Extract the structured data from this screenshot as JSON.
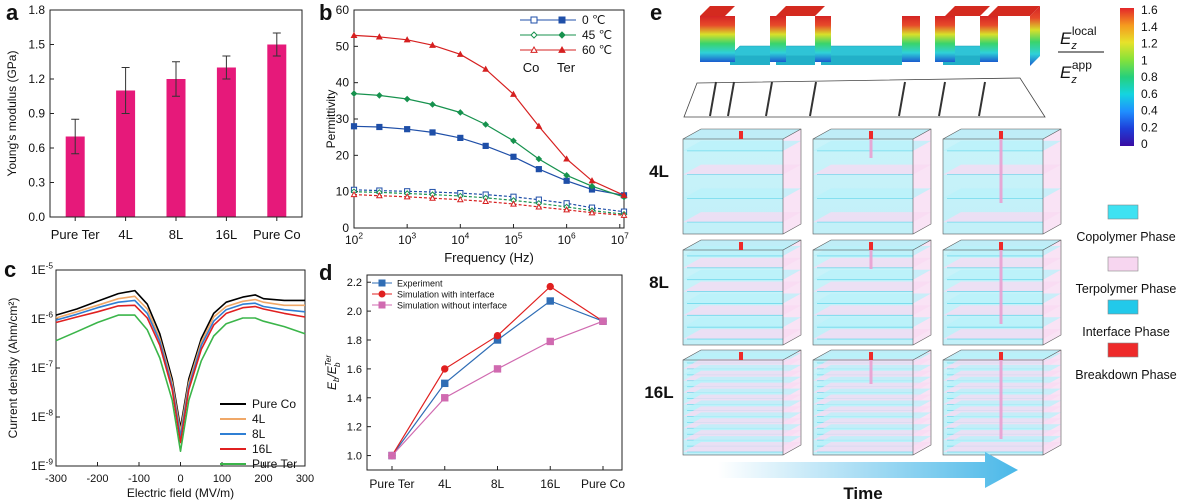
{
  "panels": {
    "a": {
      "letter": "a",
      "chart_data": {
        "type": "bar",
        "ylabel": "Young's modulus (GPa)",
        "categories": [
          "Pure Ter",
          "4L",
          "8L",
          "16L",
          "Pure Co"
        ],
        "values": [
          0.7,
          1.1,
          1.2,
          1.3,
          1.5
        ],
        "errors": [
          0.15,
          0.2,
          0.15,
          0.1,
          0.1
        ],
        "ylim": [
          0,
          1.8
        ],
        "yticks": [
          "0.0",
          "0.3",
          "0.6",
          "0.9",
          "1.2",
          "1.5",
          "1.8"
        ],
        "color": "#e6197a"
      }
    },
    "b": {
      "letter": "b",
      "chart_data": {
        "type": "line",
        "xscale": "log",
        "xlabel": "Frequency (Hz)",
        "ylabel": "Permittivity",
        "xlim": [
          100,
          12000000
        ],
        "ylim": [
          0,
          60
        ],
        "yticks": [
          "0",
          "10",
          "20",
          "30",
          "40",
          "50",
          "60"
        ],
        "xtick_exponents": [
          "2",
          "3",
          "4",
          "5",
          "6",
          "7"
        ],
        "legend_temps": [
          "0 ℃",
          "45 ℃",
          "60 ℃"
        ],
        "legend_co": "Co",
        "legend_ter": "Ter",
        "series": [
          {
            "name": "0 ℃",
            "group": "Ter",
            "color": "#1f4fa8",
            "marker": "square",
            "x": [
              100,
              300,
              1000,
              3000,
              10000,
              30000,
              100000,
              300000,
              1000000,
              3000000,
              12000000
            ],
            "values": [
              28,
              27.8,
              27.2,
              26.3,
              24.8,
              22.6,
              19.6,
              16.2,
              13,
              10.6,
              9
            ]
          },
          {
            "name": "45 ℃",
            "group": "Ter",
            "color": "#17924e",
            "marker": "diamond",
            "x": [
              100,
              300,
              1000,
              3000,
              10000,
              30000,
              100000,
              300000,
              1000000,
              3000000,
              12000000
            ],
            "values": [
              37,
              36.5,
              35.5,
              34,
              31.8,
              28.5,
              24,
              19,
              14.5,
              11.5,
              8.5
            ]
          },
          {
            "name": "60 ℃",
            "group": "Ter",
            "color": "#d62020",
            "marker": "triangle",
            "x": [
              100,
              300,
              1000,
              3000,
              10000,
              30000,
              100000,
              300000,
              1000000,
              3000000,
              12000000
            ],
            "values": [
              53,
              52.6,
              51.8,
              50.3,
              47.8,
              43.7,
              36.8,
              28,
              19,
              13,
              9
            ]
          },
          {
            "name": "0 ℃",
            "group": "Co",
            "color": "#1f4fa8",
            "marker": "square",
            "x": [
              100,
              300,
              1000,
              3000,
              10000,
              30000,
              100000,
              300000,
              1000000,
              3000000,
              12000000
            ],
            "values": [
              10.5,
              10.3,
              10.1,
              9.9,
              9.6,
              9.2,
              8.6,
              7.8,
              6.8,
              5.6,
              4.5
            ]
          },
          {
            "name": "45 ℃",
            "group": "Co",
            "color": "#17924e",
            "marker": "diamond",
            "x": [
              100,
              300,
              1000,
              3000,
              10000,
              30000,
              100000,
              300000,
              1000000,
              3000000,
              12000000
            ],
            "values": [
              10,
              9.8,
              9.5,
              9.2,
              8.8,
              8.3,
              7.6,
              6.8,
              5.8,
              4.8,
              3.8
            ]
          },
          {
            "name": "60 ℃",
            "group": "Co",
            "color": "#d62020",
            "marker": "triangle",
            "x": [
              100,
              300,
              1000,
              3000,
              10000,
              30000,
              100000,
              300000,
              1000000,
              3000000,
              12000000
            ],
            "values": [
              9.2,
              8.9,
              8.6,
              8.2,
              7.8,
              7.3,
              6.6,
              5.8,
              5,
              4.2,
              3.5
            ]
          }
        ]
      }
    },
    "c": {
      "letter": "c",
      "chart_data": {
        "type": "line",
        "yscale": "log",
        "xlabel": "Electric field (MV/m)",
        "ylabel": "Current density (Ahm/cm²)",
        "xlim": [
          -300,
          300
        ],
        "ylim": [
          1e-09,
          1e-05
        ],
        "xticks": [
          "-300",
          "-200",
          "-100",
          "0",
          "100",
          "200",
          "300"
        ],
        "ytick_exponents": [
          "-9",
          "-8",
          "-7",
          "-6",
          "-5"
        ],
        "series": [
          {
            "name": "Pure Co",
            "color": "#000000",
            "x": [
              -300,
              -250,
              -200,
              -150,
              -110,
              -80,
              -50,
              -20,
              0,
              20,
              50,
              80,
              110,
              150,
              180,
              200,
              250,
              300
            ],
            "values": [
              1.2e-06,
              1.6e-06,
              2.3e-06,
              3.3e-06,
              3.8e-06,
              2e-06,
              5e-07,
              6e-08,
              6e-09,
              6e-08,
              4e-07,
              1.3e-06,
              2.2e-06,
              2.8e-06,
              3.1e-06,
              2.6e-06,
              2.4e-06,
              2.4e-06
            ]
          },
          {
            "name": "4L",
            "color": "#f0a868",
            "x": [
              -300,
              -250,
              -200,
              -150,
              -110,
              -80,
              -50,
              -20,
              0,
              20,
              50,
              80,
              110,
              150,
              180,
              200,
              250,
              300
            ],
            "values": [
              1.05e-06,
              1.4e-06,
              1.9e-06,
              2.6e-06,
              2.9e-06,
              1.6e-06,
              4e-07,
              5e-08,
              5e-09,
              5e-08,
              3.4e-07,
              1.1e-06,
              1.8e-06,
              2.3e-06,
              2.5e-06,
              2.2e-06,
              1.9e-06,
              1.9e-06
            ]
          },
          {
            "name": "8L",
            "color": "#2f7fd4",
            "x": [
              -300,
              -250,
              -200,
              -150,
              -110,
              -80,
              -50,
              -20,
              0,
              20,
              50,
              80,
              110,
              150,
              180,
              200,
              250,
              300
            ],
            "values": [
              9.5e-07,
              1.25e-06,
              1.7e-06,
              2.2e-06,
              2.4e-06,
              1.3e-06,
              3.5e-07,
              4.2e-08,
              4e-09,
              4.2e-08,
              2.9e-07,
              9e-07,
              1.55e-06,
              2e-06,
              2.1e-06,
              1.8e-06,
              1.55e-06,
              1.4e-06
            ]
          },
          {
            "name": "16L",
            "color": "#e02020",
            "x": [
              -300,
              -250,
              -200,
              -150,
              -110,
              -80,
              -50,
              -20,
              0,
              20,
              50,
              80,
              110,
              150,
              180,
              200,
              250,
              300
            ],
            "values": [
              8.5e-07,
              1.1e-06,
              1.4e-06,
              1.85e-06,
              1.9e-06,
              1.05e-06,
              2.9e-07,
              3.6e-08,
              3e-09,
              3.6e-08,
              2.4e-07,
              7.5e-07,
              1.3e-06,
              1.7e-06,
              1.8e-06,
              1.6e-06,
              1.3e-06,
              1.1e-06
            ]
          },
          {
            "name": "Pure Ter",
            "color": "#3bb54a",
            "x": [
              -300,
              -250,
              -200,
              -150,
              -110,
              -80,
              -50,
              -20,
              0,
              20,
              50,
              80,
              110,
              150,
              180,
              200,
              250,
              300
            ],
            "values": [
              3.6e-07,
              5.5e-07,
              8.5e-07,
              1.2e-06,
              1.2e-06,
              6e-07,
              1.6e-07,
              2.2e-08,
              2e-09,
              2.2e-08,
              1.4e-07,
              4.5e-07,
              8e-07,
              1.05e-06,
              1.05e-06,
              9e-07,
              7e-07,
              5e-07
            ]
          }
        ]
      }
    },
    "d": {
      "letter": "d",
      "chart_data": {
        "type": "line",
        "ylabel_main": "E",
        "ylabel_sub": "b",
        "ylabel_mid": "/E",
        "ylabel_sup": "Ter",
        "ylabel_sub2": "b",
        "categories": [
          "Pure Ter",
          "4L",
          "8L",
          "16L",
          "Pure Co"
        ],
        "ylim": [
          0.9,
          2.25
        ],
        "yticks": [
          "1.0",
          "1.2",
          "1.4",
          "1.6",
          "1.8",
          "2.0",
          "2.2"
        ],
        "series": [
          {
            "name": "Experiment",
            "color": "#2f6db5",
            "marker": "square",
            "values": [
              1.0,
              1.5,
              1.8,
              2.07,
              1.93
            ]
          },
          {
            "name": "Simulation with interface",
            "color": "#e02020",
            "marker": "circle",
            "values": [
              1.0,
              1.6,
              1.83,
              2.17,
              1.93
            ]
          },
          {
            "name": "Simulation without interface",
            "color": "#d06ab0",
            "marker": "square",
            "values": [
              1.0,
              1.4,
              1.6,
              1.79,
              1.93
            ]
          }
        ]
      }
    },
    "e": {
      "letter": "e",
      "colorbar": {
        "ticks": [
          "0",
          "0.2",
          "0.4",
          "0.6",
          "0.8",
          "1",
          "1.2",
          "1.4",
          "1.6"
        ],
        "label_num": "E",
        "label_num_sub": "z",
        "label_num_sup": "local",
        "label_den": "E",
        "label_den_sub": "z",
        "label_den_sup": "app"
      },
      "rows": [
        "4L",
        "8L",
        "16L"
      ],
      "legend": [
        {
          "label": "Copolymer Phase",
          "color": "#3fe2f2"
        },
        {
          "label": "Terpolymer Phase",
          "color": "#f7d6f0"
        },
        {
          "label": "Interface Phase",
          "color": "#22c9ea"
        },
        {
          "label": "Breakdown Phase",
          "color": "#ee2a2a"
        }
      ],
      "time_label": "Time"
    }
  }
}
